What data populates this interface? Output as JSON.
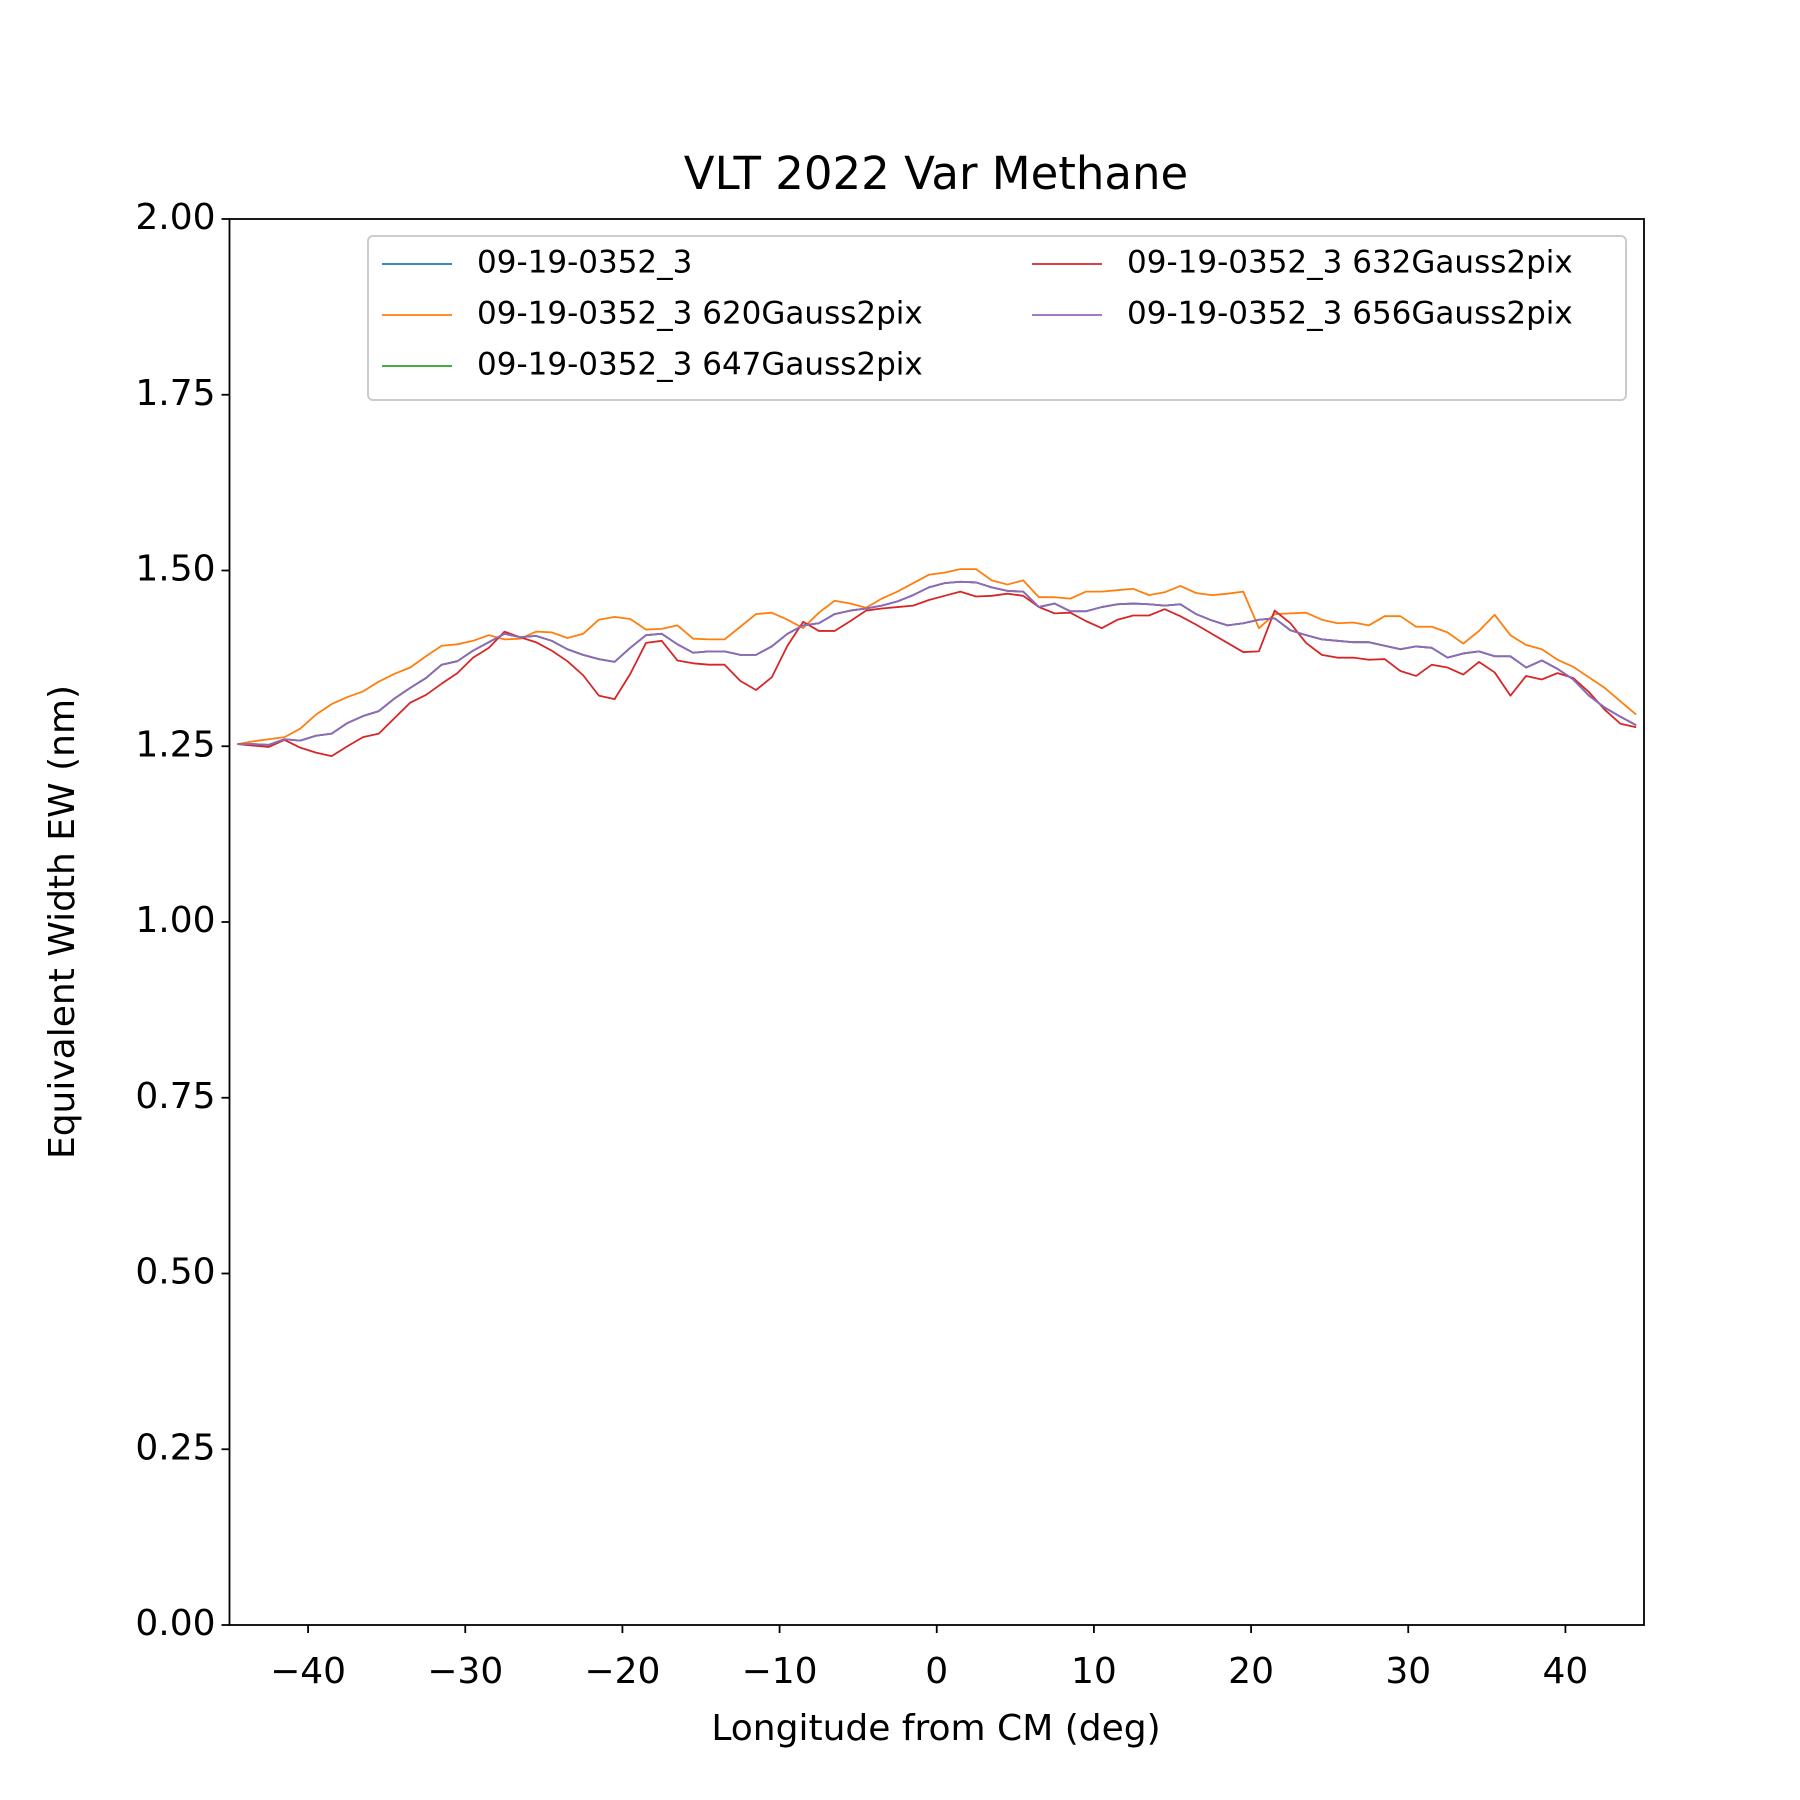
{
  "chart_data": {
    "type": "line",
    "title": "VLT 2022 Var Methane",
    "x_label": "Longitude from CM (deg)",
    "y_label": "Equivalent Width EW (nm)",
    "xlim": [
      -45,
      45
    ],
    "ylim": [
      0,
      2
    ],
    "xticks": [
      {
        "value": -40,
        "label": "−40"
      },
      {
        "value": -30,
        "label": "−30"
      },
      {
        "value": -20,
        "label": "−20"
      },
      {
        "value": -10,
        "label": "−10"
      },
      0,
      10,
      20,
      30,
      40
    ],
    "yticks": [
      {
        "value": 0,
        "label": "0.00"
      },
      {
        "value": 0.25,
        "label": "0.25"
      },
      {
        "value": 0.5,
        "label": "0.50"
      },
      {
        "value": 0.75,
        "label": "0.75"
      },
      {
        "value": 1,
        "label": "1.00"
      },
      {
        "value": 1.25,
        "label": "1.25"
      },
      {
        "value": 1.5,
        "label": "1.50"
      },
      {
        "value": 1.75,
        "label": "1.75"
      },
      {
        "value": 2,
        "label": "2.00"
      }
    ],
    "grid": false,
    "legend": "upper right",
    "x": [
      -44.5,
      -43.5,
      -42.5,
      -41.5,
      -40.5,
      -39.5,
      -38.5,
      -37.5,
      -36.5,
      -35.5,
      -34.5,
      -33.5,
      -32.5,
      -31.5,
      -30.5,
      -29.5,
      -28.5,
      -27.5,
      -26.5,
      -25.5,
      -24.5,
      -23.5,
      -22.5,
      -21.5,
      -20.5,
      -19.5,
      -18.5,
      -17.5,
      -16.5,
      -15.5,
      -14.5,
      -13.5,
      -12.5,
      -11.5,
      -10.5,
      -9.5,
      -8.5,
      -7.5,
      -6.5,
      -5.5,
      -4.5,
      -3.5,
      -2.5,
      -1.5,
      -0.5,
      0.5,
      1.5,
      2.5,
      3.5,
      4.5,
      5.5,
      6.5,
      7.5,
      8.5,
      9.5,
      10.5,
      11.5,
      12.5,
      13.5,
      14.5,
      15.5,
      16.5,
      17.5,
      18.5,
      19.5,
      20.5,
      21.5,
      22.5,
      23.5,
      24.5,
      25.5,
      26.5,
      27.5,
      28.5,
      29.5,
      30.5,
      31.5,
      32.5,
      33.5,
      34.5,
      35.5,
      36.5,
      37.5,
      38.5,
      39.5,
      40.5,
      41.5,
      42.5,
      43.5,
      44.5
    ],
    "series": [
      {
        "name": "09-19-0352_3",
        "color": "#1f77b4",
        "values": [
          1.253,
          1.253,
          1.252,
          1.26,
          1.258,
          1.265,
          1.268,
          1.283,
          1.293,
          1.3,
          1.318,
          1.333,
          1.347,
          1.366,
          1.371,
          1.386,
          1.398,
          1.41,
          1.405,
          1.407,
          1.4,
          1.388,
          1.38,
          1.374,
          1.37,
          1.39,
          1.408,
          1.41,
          1.395,
          1.383,
          1.385,
          1.385,
          1.38,
          1.38,
          1.392,
          1.41,
          1.422,
          1.425,
          1.438,
          1.443,
          1.446,
          1.45,
          1.456,
          1.465,
          1.476,
          1.482,
          1.484,
          1.483,
          1.476,
          1.471,
          1.47,
          1.448,
          1.453,
          1.442,
          1.442,
          1.448,
          1.452,
          1.453,
          1.452,
          1.45,
          1.452,
          1.438,
          1.429,
          1.422,
          1.425,
          1.43,
          1.432,
          1.415,
          1.408,
          1.402,
          1.4,
          1.398,
          1.398,
          1.393,
          1.388,
          1.392,
          1.39,
          1.376,
          1.382,
          1.385,
          1.378,
          1.378,
          1.362,
          1.372,
          1.36,
          1.345,
          1.322,
          1.305,
          1.292,
          1.28
        ]
      },
      {
        "name": "09-19-0352_3 620Gauss2pix",
        "color": "#ff7f0e",
        "values": [
          1.253,
          1.257,
          1.26,
          1.263,
          1.275,
          1.295,
          1.31,
          1.32,
          1.328,
          1.342,
          1.353,
          1.362,
          1.378,
          1.393,
          1.395,
          1.4,
          1.408,
          1.402,
          1.403,
          1.413,
          1.412,
          1.404,
          1.41,
          1.43,
          1.434,
          1.431,
          1.416,
          1.417,
          1.422,
          1.403,
          1.402,
          1.402,
          1.42,
          1.438,
          1.44,
          1.43,
          1.418,
          1.44,
          1.457,
          1.453,
          1.447,
          1.46,
          1.47,
          1.482,
          1.494,
          1.497,
          1.502,
          1.502,
          1.486,
          1.48,
          1.486,
          1.462,
          1.462,
          1.46,
          1.47,
          1.47,
          1.472,
          1.474,
          1.465,
          1.469,
          1.478,
          1.468,
          1.465,
          1.467,
          1.47,
          1.418,
          1.438,
          1.439,
          1.44,
          1.43,
          1.425,
          1.426,
          1.422,
          1.435,
          1.435,
          1.42,
          1.42,
          1.412,
          1.396,
          1.414,
          1.437,
          1.408,
          1.394,
          1.388,
          1.373,
          1.363,
          1.348,
          1.333,
          1.314,
          1.295
        ]
      },
      {
        "name": "09-19-0352_3 647Gauss2pix",
        "color": "#2ca02c",
        "values": [
          1.253,
          1.253,
          1.252,
          1.26,
          1.258,
          1.265,
          1.268,
          1.283,
          1.293,
          1.3,
          1.318,
          1.333,
          1.347,
          1.366,
          1.371,
          1.386,
          1.398,
          1.41,
          1.405,
          1.407,
          1.4,
          1.388,
          1.38,
          1.374,
          1.37,
          1.39,
          1.408,
          1.41,
          1.395,
          1.383,
          1.385,
          1.385,
          1.38,
          1.38,
          1.392,
          1.41,
          1.422,
          1.425,
          1.438,
          1.443,
          1.446,
          1.45,
          1.456,
          1.465,
          1.476,
          1.482,
          1.484,
          1.483,
          1.476,
          1.471,
          1.47,
          1.448,
          1.453,
          1.442,
          1.442,
          1.448,
          1.452,
          1.453,
          1.452,
          1.45,
          1.452,
          1.438,
          1.429,
          1.422,
          1.425,
          1.43,
          1.432,
          1.415,
          1.408,
          1.402,
          1.4,
          1.398,
          1.398,
          1.393,
          1.388,
          1.392,
          1.39,
          1.376,
          1.382,
          1.385,
          1.378,
          1.378,
          1.362,
          1.372,
          1.36,
          1.345,
          1.322,
          1.305,
          1.292,
          1.28
        ]
      },
      {
        "name": "09-19-0352_3 632Gauss2pix",
        "color": "#d62728",
        "values": [
          1.253,
          1.251,
          1.249,
          1.259,
          1.248,
          1.241,
          1.236,
          1.25,
          1.263,
          1.268,
          1.29,
          1.312,
          1.323,
          1.339,
          1.354,
          1.376,
          1.39,
          1.413,
          1.405,
          1.398,
          1.386,
          1.371,
          1.351,
          1.322,
          1.317,
          1.353,
          1.397,
          1.4,
          1.372,
          1.368,
          1.366,
          1.366,
          1.343,
          1.33,
          1.348,
          1.393,
          1.427,
          1.414,
          1.414,
          1.428,
          1.443,
          1.446,
          1.448,
          1.45,
          1.458,
          1.464,
          1.47,
          1.463,
          1.464,
          1.467,
          1.464,
          1.448,
          1.439,
          1.44,
          1.428,
          1.418,
          1.43,
          1.436,
          1.436,
          1.445,
          1.435,
          1.423,
          1.41,
          1.397,
          1.384,
          1.385,
          1.443,
          1.425,
          1.397,
          1.38,
          1.376,
          1.376,
          1.373,
          1.374,
          1.357,
          1.35,
          1.366,
          1.362,
          1.352,
          1.37,
          1.355,
          1.322,
          1.35,
          1.345,
          1.354,
          1.347,
          1.327,
          1.302,
          1.282,
          1.277
        ]
      },
      {
        "name": "09-19-0352_3 656Gauss2pix",
        "color": "#9467bd",
        "values": [
          1.253,
          1.253,
          1.252,
          1.26,
          1.258,
          1.265,
          1.268,
          1.283,
          1.293,
          1.3,
          1.318,
          1.333,
          1.347,
          1.366,
          1.371,
          1.386,
          1.398,
          1.41,
          1.405,
          1.407,
          1.4,
          1.388,
          1.38,
          1.374,
          1.37,
          1.39,
          1.408,
          1.41,
          1.395,
          1.383,
          1.385,
          1.385,
          1.38,
          1.38,
          1.392,
          1.41,
          1.422,
          1.425,
          1.438,
          1.443,
          1.446,
          1.45,
          1.456,
          1.465,
          1.476,
          1.482,
          1.484,
          1.483,
          1.476,
          1.471,
          1.47,
          1.448,
          1.453,
          1.442,
          1.442,
          1.448,
          1.452,
          1.453,
          1.452,
          1.45,
          1.452,
          1.438,
          1.429,
          1.422,
          1.425,
          1.43,
          1.432,
          1.415,
          1.408,
          1.402,
          1.4,
          1.398,
          1.398,
          1.393,
          1.388,
          1.392,
          1.39,
          1.376,
          1.382,
          1.385,
          1.378,
          1.378,
          1.362,
          1.372,
          1.36,
          1.345,
          1.322,
          1.305,
          1.292,
          1.28
        ]
      }
    ]
  }
}
